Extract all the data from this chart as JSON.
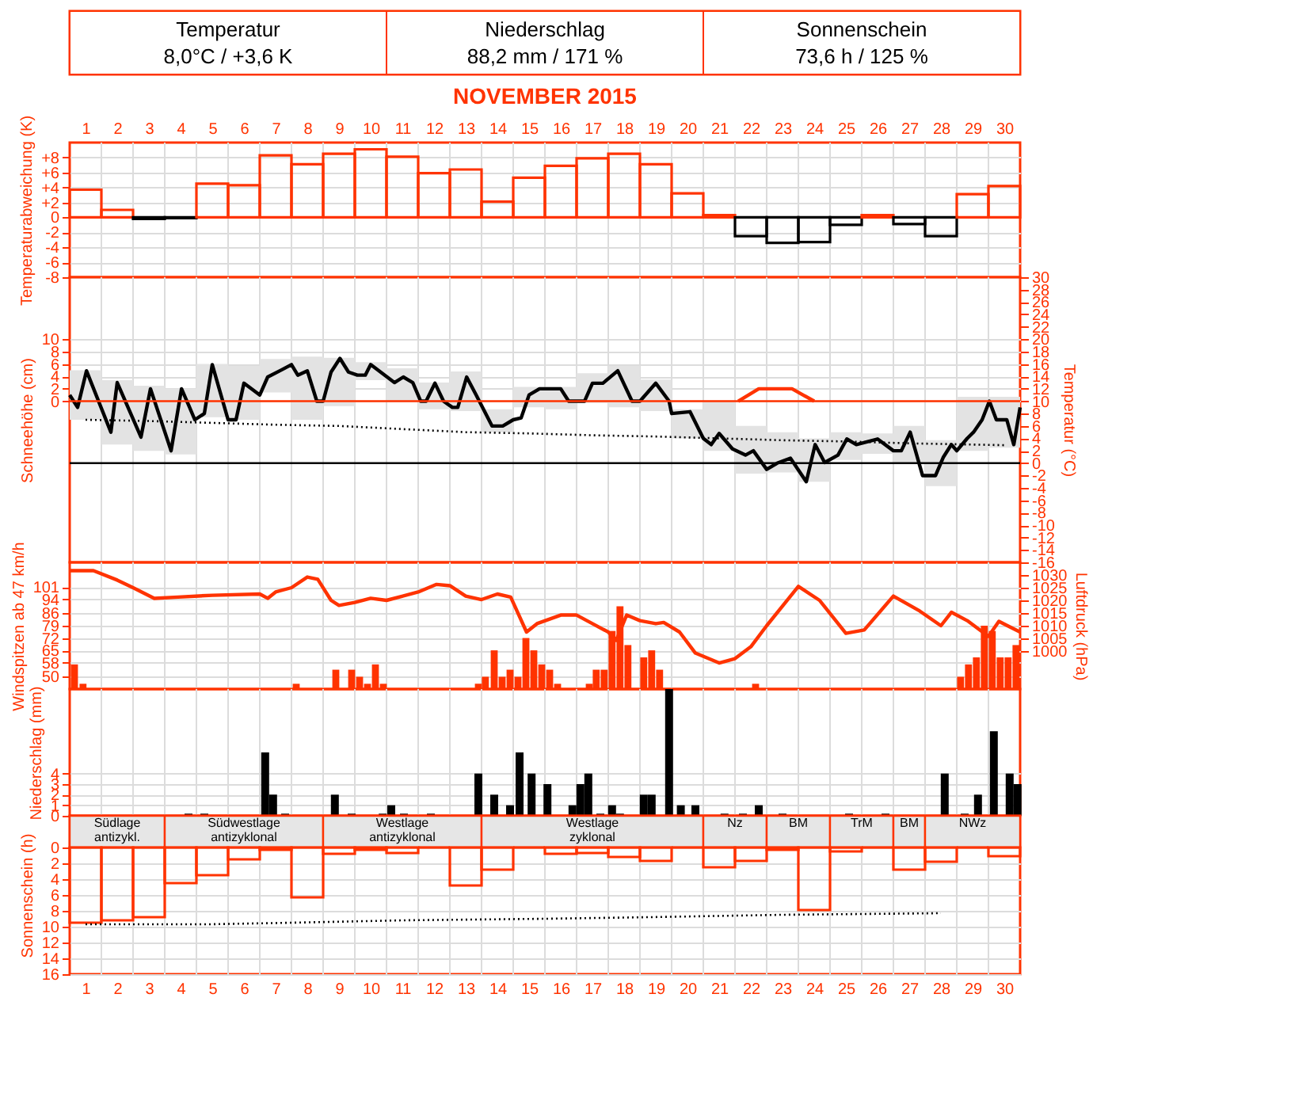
{
  "chart_data": [
    {
      "type": "other",
      "annotations": [
        "Temperatur",
        "8,0°C / +3,6 K",
        "Niederschlag",
        "88,2 mm / 171 %",
        "Sonnenschein",
        "73,6 h / 125 %"
      ]
    },
    {
      "type": "bar",
      "title": "NOVEMBER 2015",
      "tick_labels": "y",
      "x": [
        1,
        2,
        3,
        4,
        5,
        6,
        7,
        8,
        9,
        10,
        11,
        12,
        13,
        14,
        15,
        16,
        17,
        18,
        19,
        20,
        21,
        22,
        23,
        24,
        25,
        26,
        27,
        28,
        29,
        30
      ],
      "xlim": [
        0.5,
        30.5
      ],
      "x2lim": [
        0.5,
        30.5
      ],
      "x2ticks": [
        1,
        2,
        3,
        4,
        5,
        6,
        7,
        8,
        9,
        10,
        11,
        12,
        13,
        14,
        15,
        16,
        17,
        18,
        19,
        20,
        21,
        22,
        23,
        24,
        25,
        26,
        27,
        28,
        29,
        30
      ],
      "ylabel": "Temperaturabweichung (K)",
      "ylim": [
        -8,
        10
      ],
      "yticks": [
        {
          "value": 8,
          "label": "+8"
        },
        {
          "value": 6,
          "label": "+6"
        },
        {
          "value": 4,
          "label": "+4"
        },
        {
          "value": 2,
          "label": "+2"
        },
        0,
        -2,
        -4,
        -6,
        -8
      ],
      "grid": true,
      "values": [
        3.7,
        1.0,
        -0.2,
        -0.1,
        4.5,
        4.3,
        8.3,
        7.1,
        8.5,
        9.1,
        8.1,
        5.9,
        6.4,
        2.1,
        5.3,
        6.9,
        7.9,
        8.5,
        7.1,
        3.2,
        0.3,
        -2.5,
        -3.4,
        -3.3,
        -1.0,
        0.3,
        -0.9,
        -2.5,
        3.1,
        4.2
      ],
      "colors": [
        "#ff3300",
        "#ff3300",
        "#000000",
        "#000000",
        "#ff3300",
        "#ff3300",
        "#ff3300",
        "#ff3300",
        "#ff3300",
        "#ff3300",
        "#ff3300",
        "#ff3300",
        "#ff3300",
        "#ff3300",
        "#ff3300",
        "#ff3300",
        "#ff3300",
        "#ff3300",
        "#ff3300",
        "#ff3300",
        "#ff3300",
        "#000000",
        "#000000",
        "#000000",
        "#000000",
        "#ff3300",
        "#000000",
        "#000000",
        "#ff3300",
        "#ff3300"
      ]
    },
    {
      "type": "line",
      "tick_labels": "y",
      "x": [
        1,
        2,
        3,
        4,
        5,
        6,
        7,
        8,
        9,
        10,
        11,
        12,
        13,
        14,
        15,
        16,
        17,
        18,
        19,
        20,
        21,
        22,
        23,
        24,
        25,
        26,
        27,
        28,
        29,
        30
      ],
      "xlim": [
        0.5,
        30.5
      ],
      "ylabel": "Schneehöhe (cm)",
      "ylim": [
        -26,
        20
      ],
      "yticks": [
        10,
        8,
        6,
        4,
        2,
        0
      ],
      "y2label": "Temperatur (°C)",
      "y2lim": [
        -16,
        30
      ],
      "y2ticks": [
        30,
        28,
        26,
        24,
        22,
        20,
        18,
        16,
        14,
        12,
        10,
        8,
        6,
        4,
        2,
        0,
        -2,
        -4,
        -6,
        -8,
        -10,
        -12,
        -14,
        -16
      ],
      "grid": true,
      "ref_lines": [
        {
          "axis": "y2",
          "value": 0,
          "color": "#000000"
        },
        {
          "axis": "y",
          "value": 0,
          "color": "#ff3300"
        }
      ],
      "series": [
        {
          "type": "bar",
          "axis": "y2",
          "color": "#e3e3e3",
          "base": [
            7,
            3,
            2,
            1.4,
            7.4,
            7,
            11.4,
            7,
            9.2,
            13.4,
            10,
            8.7,
            8.4,
            5,
            9,
            8.7,
            9.7,
            9,
            8.4,
            4,
            2,
            -1.7,
            -1.5,
            -3,
            0.5,
            1.5,
            0,
            -3.7,
            2,
            2.5
          ],
          "values": [
            8,
            10.4,
            10.5,
            10.6,
            8.6,
            8.7,
            5.4,
            10.2,
            7.8,
            2.9,
            5.3,
            4.3,
            6.4,
            3.7,
            3.3,
            3.6,
            4.8,
            6.7,
            5.1,
            4.7,
            8,
            7.7,
            6.5,
            7,
            4.5,
            3.3,
            6,
            7.4,
            8.7,
            8.2
          ]
        },
        {
          "type": "line",
          "axis": "y2",
          "color": "#000000",
          "line_style": "dotted",
          "x": [
            1,
            3,
            5,
            7,
            9,
            11,
            13,
            15,
            17,
            19,
            21,
            23,
            25,
            27,
            29,
            30
          ],
          "values": [
            7.0,
            6.8,
            6.5,
            6.2,
            6.0,
            5.5,
            5.0,
            4.8,
            4.5,
            4.3,
            4.0,
            3.7,
            3.5,
            3.2,
            3.0,
            2.9
          ]
        },
        {
          "type": "line",
          "axis": "y2",
          "color": "#000000",
          "x": [
            0.5,
            0.75,
            1.03,
            1.8,
            2.0,
            2.75,
            3.05,
            3.7,
            4.03,
            4.25,
            4.45,
            4.75,
            5.0,
            5.5,
            5.75,
            6.0,
            6.5,
            6.75,
            7.17,
            7.5,
            7.7,
            8.0,
            8.3,
            8.5,
            8.75,
            9.03,
            9.3,
            9.58,
            9.83,
            10.0,
            10.75,
            11.03,
            11.33,
            11.58,
            11.75,
            12.03,
            12.3,
            12.58,
            12.75,
            13.03,
            13.33,
            13.83,
            14.17,
            14.5,
            14.75,
            15.0,
            15.33,
            16.0,
            16.25,
            16.75,
            17.0,
            17.33,
            17.8,
            18.25,
            18.5,
            19.0,
            19.42,
            19.5,
            20.08,
            20.5,
            20.75,
            21.0,
            21.42,
            21.83,
            22.08,
            22.5,
            22.83,
            23.25,
            23.75,
            24.03,
            24.33,
            24.75,
            25.03,
            25.33,
            26.0,
            26.5,
            26.75,
            27.03,
            27.42,
            27.83,
            28.08,
            28.33,
            28.5,
            28.83,
            29.03,
            29.3,
            29.53,
            29.75,
            30.08,
            30.3,
            30.5
          ],
          "values": [
            11,
            9,
            14.9,
            5,
            13,
            4.2,
            12,
            2,
            12,
            9.4,
            7,
            8,
            15.9,
            7,
            7,
            12.9,
            11,
            13.9,
            15,
            15.9,
            14.2,
            14.9,
            10,
            10,
            14.7,
            16.9,
            14.7,
            14.2,
            14.2,
            15.9,
            13,
            13.9,
            13,
            10,
            10,
            12.9,
            10,
            9,
            9,
            13.9,
            11,
            6,
            6,
            7,
            7.3,
            11,
            12,
            12,
            10,
            10,
            12.9,
            12.9,
            14.9,
            10,
            10,
            12.9,
            10,
            8,
            8.3,
            4,
            3,
            4.8,
            2.3,
            1.3,
            2,
            -1,
            0,
            0.8,
            -3,
            3,
            0.1,
            1.3,
            3.9,
            3,
            3.9,
            2,
            2,
            5,
            -2,
            -2,
            1,
            3,
            2,
            4,
            5,
            7,
            10,
            7,
            7,
            3,
            9
          ]
        },
        {
          "type": "line",
          "color": "#ff3300",
          "x": [
            21.6,
            22.25,
            23.3,
            24.0
          ],
          "values": [
            0,
            2,
            2,
            0
          ]
        }
      ]
    },
    {
      "type": "bar",
      "tick_labels": "y",
      "xlim": [
        0.5,
        30.5
      ],
      "ylabel": "Windspitzen ab 47 km/h",
      "ylim": [
        43,
        115
      ],
      "yticks": [
        101,
        94,
        86,
        79,
        72,
        65,
        58,
        50
      ],
      "y2label": "Luftdruck (hPa)",
      "y2lim": [
        985,
        1035
      ],
      "y2ticks": [
        1030,
        1025,
        1020,
        1015,
        1010,
        1005,
        1000
      ],
      "grid": true,
      "series": [
        {
          "type": "bar",
          "color": "#ff3300",
          "x": [
            0.65,
            0.92,
            7.65,
            8.9,
            9.4,
            9.65,
            9.9,
            10.15,
            10.4,
            13.4,
            13.62,
            13.9,
            14.15,
            14.4,
            14.65,
            14.9,
            15.15,
            15.4,
            15.65,
            15.9,
            16.9,
            17.12,
            17.37,
            17.62,
            17.87,
            18.12,
            18.62,
            18.87,
            19.12,
            22.15,
            28.62,
            28.87,
            29.12,
            29.37,
            29.62,
            29.87,
            30.12,
            30.37
          ],
          "values": [
            57,
            46,
            46,
            54,
            54,
            50,
            46,
            57,
            46,
            46,
            50,
            65,
            50,
            54,
            50,
            72,
            65,
            57,
            54,
            46,
            46,
            54,
            54,
            76,
            90,
            68,
            61,
            65,
            54,
            46,
            50,
            57,
            61,
            79,
            76,
            61,
            61,
            68
          ]
        },
        {
          "type": "line",
          "axis": "y2",
          "color": "#ff3300",
          "x": [
            0.5,
            1.25,
            2.0,
            2.5,
            3.17,
            3.92,
            5.0,
            6.5,
            6.75,
            7.0,
            7.5,
            8.0,
            8.33,
            8.75,
            9.0,
            9.5,
            10.0,
            10.5,
            11.5,
            12.08,
            12.5,
            13.0,
            13.5,
            14.0,
            14.42,
            14.92,
            15.25,
            16.0,
            16.5,
            17.0,
            17.5,
            17.75,
            18.08,
            18.5,
            19.0,
            19.25,
            19.75,
            20.25,
            21.0,
            21.5,
            22.0,
            22.5,
            23.5,
            24.17,
            25.0,
            25.58,
            26.5,
            27.33,
            28.0,
            28.33,
            28.83,
            29.5,
            29.83,
            30.5
          ],
          "values": [
            1031.7,
            1031.7,
            1028,
            1025,
            1020.8,
            1021.3,
            1022,
            1022.5,
            1020.8,
            1023.3,
            1025,
            1029.2,
            1028.3,
            1020,
            1018,
            1019.2,
            1020.8,
            1020,
            1023.3,
            1026.3,
            1025.8,
            1021.7,
            1020.3,
            1022.5,
            1021.3,
            1007.5,
            1010.8,
            1014.2,
            1014.2,
            1010.8,
            1007.5,
            1004.2,
            1014.2,
            1012,
            1010.8,
            1011.3,
            1007.5,
            999.2,
            995.3,
            997,
            1001.7,
            1010,
            1025.5,
            1020,
            1007,
            1008.3,
            1021.7,
            1015.8,
            1010,
            1015.3,
            1012,
            1005.8,
            1011.7,
            1007.5
          ]
        }
      ]
    },
    {
      "type": "bar",
      "tick_labels": "y",
      "xlim": [
        0.5,
        30.5
      ],
      "ylabel": "Niederschlag (mm)",
      "ylim": [
        0,
        12
      ],
      "yticks": [
        4,
        3,
        2,
        1,
        0
      ],
      "grid": true,
      "x": [
        4.25,
        4.75,
        6.67,
        6.92,
        7.3,
        8.87,
        9.4,
        10.38,
        10.65,
        11.05,
        11.9,
        13.4,
        13.9,
        14.4,
        14.7,
        15.08,
        15.58,
        16.37,
        16.62,
        16.87,
        17.25,
        17.62,
        17.87,
        18.62,
        18.87,
        19.42,
        19.79,
        20.25,
        21.17,
        21.75,
        22.25,
        23.0,
        25.1,
        26.25,
        28.12,
        28.75,
        29.17,
        29.67,
        30.17,
        30.42
      ],
      "values": [
        0.2,
        0.2,
        6.0,
        2.0,
        0.2,
        2.0,
        0.2,
        0.2,
        1.0,
        0.2,
        0.2,
        4.0,
        2.0,
        1.0,
        6.0,
        4.0,
        3.0,
        1.0,
        3.0,
        4.0,
        0.2,
        1.0,
        0.2,
        2.0,
        2.0,
        12.0,
        1.0,
        1.0,
        0.2,
        0.2,
        1.0,
        0.2,
        0.2,
        0.2,
        4.0,
        0.2,
        2.0,
        8.0,
        4.0,
        3.0
      ],
      "color": "#000000"
    },
    {
      "type": "bar",
      "x": [
        1,
        2,
        3,
        4,
        5,
        6,
        7,
        8,
        9,
        10,
        11,
        12,
        13,
        14,
        15,
        16,
        17,
        18,
        19,
        20,
        21,
        22,
        23,
        24,
        25,
        26,
        27,
        28,
        29,
        30
      ],
      "xlim": [
        0.5,
        30.5
      ],
      "xticks": [
        1,
        2,
        3,
        4,
        5,
        6,
        7,
        8,
        9,
        10,
        11,
        12,
        13,
        14,
        15,
        16,
        17,
        18,
        19,
        20,
        21,
        22,
        23,
        24,
        25,
        26,
        27,
        28,
        29,
        30
      ],
      "ylabel": "Sonnenschein (h)",
      "ylim": [
        16,
        -4
      ],
      "yticks": [
        0,
        2,
        4,
        6,
        8,
        10,
        12,
        14,
        16
      ],
      "grid": true,
      "bands": [
        {
          "axis": "x",
          "from": 0.5,
          "to": 3.5,
          "label": "Südlage antizykl.",
          "color": "#e6e6e6"
        },
        {
          "axis": "x",
          "from": 3.5,
          "to": 8.5,
          "label": "Südwestlage antizyklonal",
          "color": "#e6e6e6"
        },
        {
          "axis": "x",
          "from": 8.5,
          "to": 13.5,
          "label": "Westlage antizyklonal",
          "color": "#e6e6e6"
        },
        {
          "axis": "x",
          "from": 13.5,
          "to": 20.5,
          "label": "Westlage zyklonal",
          "color": "#e6e6e6"
        },
        {
          "axis": "x",
          "from": 20.5,
          "to": 22.5,
          "label": "Nz",
          "color": "#e6e6e6"
        },
        {
          "axis": "x",
          "from": 22.5,
          "to": 24.5,
          "label": "BM",
          "color": "#e6e6e6"
        },
        {
          "axis": "x",
          "from": 24.5,
          "to": 26.5,
          "label": "TrM",
          "color": "#e6e6e6"
        },
        {
          "axis": "x",
          "from": 26.5,
          "to": 27.5,
          "label": "BM",
          "color": "#e6e6e6"
        },
        {
          "axis": "x",
          "from": 27.5,
          "to": 30.5,
          "label": "NWz",
          "color": "#e6e6e6"
        }
      ],
      "series": [
        {
          "type": "bar",
          "color": "#ff3300",
          "values": [
            9.5,
            9.2,
            8.8,
            4.5,
            3.5,
            1.5,
            0.3,
            6.3,
            0.8,
            0.3,
            0.7,
            0,
            4.8,
            2.8,
            0,
            0.8,
            0.7,
            1.2,
            1.7,
            0,
            2.5,
            1.7,
            0.3,
            7.9,
            0.5,
            0,
            2.8,
            1.8,
            0,
            1.1
          ]
        },
        {
          "type": "line",
          "color": "#000000",
          "line_style": "dotted",
          "x": [
            1,
            4.9,
            7.5,
            11,
            15.5,
            18.8,
            23,
            28
          ],
          "values": [
            9.7,
            9.7,
            9.5,
            9.2,
            9.0,
            8.8,
            8.5,
            8.3
          ]
        }
      ]
    }
  ]
}
